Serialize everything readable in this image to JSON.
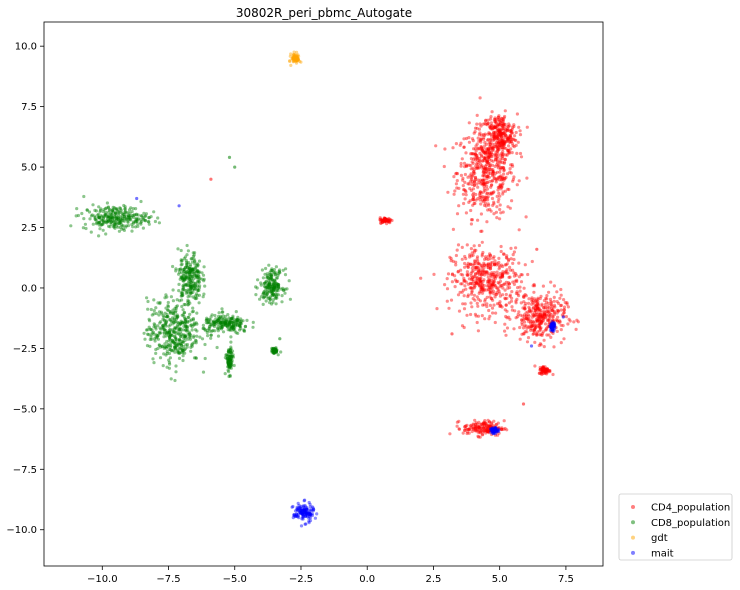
{
  "chart_data": {
    "type": "scatter",
    "title": "30802R_peri_pbmc_Autogate",
    "xlabel": "",
    "ylabel": "",
    "xlim": [
      -12.2,
      8.9
    ],
    "ylim": [
      -11.5,
      11.0
    ],
    "x_ticks": [
      -10.0,
      -7.5,
      -5.0,
      -2.5,
      0.0,
      2.5,
      5.0,
      7.5
    ],
    "x_tick_labels": [
      "−10.0",
      "−7.5",
      "−5.0",
      "−2.5",
      "0.0",
      "2.5",
      "5.0",
      "7.5"
    ],
    "y_ticks": [
      -10.0,
      -7.5,
      -5.0,
      -2.5,
      0.0,
      2.5,
      5.0,
      7.5,
      10.0
    ],
    "y_tick_labels": [
      "−10.0",
      "−7.5",
      "−5.0",
      "−2.5",
      "0.0",
      "2.5",
      "5.0",
      "7.5",
      "10.0"
    ],
    "grid": false,
    "legend_position": "outside-bottom-right",
    "series": [
      {
        "name": "CD4_population",
        "color": "#ff0000",
        "clusters": [
          {
            "cx": 4.5,
            "cy": 4.8,
            "sx": 1.0,
            "sy": 1.7
          },
          {
            "cx": 5.0,
            "cy": 6.3,
            "sx": 0.6,
            "sy": 0.8
          },
          {
            "cx": 4.5,
            "cy": 0.3,
            "sx": 1.2,
            "sy": 1.2
          },
          {
            "cx": 6.5,
            "cy": -1.2,
            "sx": 0.9,
            "sy": 0.9
          },
          {
            "cx": 4.4,
            "cy": -5.8,
            "sx": 0.7,
            "sy": 0.28
          },
          {
            "cx": 0.7,
            "cy": 2.8,
            "sx": 0.2,
            "sy": 0.1
          },
          {
            "cx": 6.7,
            "cy": -3.4,
            "sx": 0.2,
            "sy": 0.15
          }
        ],
        "points": [
          {
            "x": -5.9,
            "y": 4.5
          },
          {
            "x": 5.9,
            "y": -4.8
          },
          {
            "x": 3.2,
            "y": -1.9
          },
          {
            "x": 6.4,
            "y": 1.6
          }
        ]
      },
      {
        "name": "CD8_population",
        "color": "#008000",
        "clusters": [
          {
            "cx": -9.5,
            "cy": 2.9,
            "sx": 1.1,
            "sy": 0.45
          },
          {
            "cx": -7.3,
            "cy": -1.8,
            "sx": 0.9,
            "sy": 1.2
          },
          {
            "cx": -6.7,
            "cy": 0.4,
            "sx": 0.4,
            "sy": 1.0
          },
          {
            "cx": -5.3,
            "cy": -1.5,
            "sx": 0.8,
            "sy": 0.35
          },
          {
            "cx": -3.6,
            "cy": 0.1,
            "sx": 0.4,
            "sy": 0.6
          },
          {
            "cx": -5.2,
            "cy": -3.0,
            "sx": 0.12,
            "sy": 0.5
          },
          {
            "cx": -3.5,
            "cy": -2.6,
            "sx": 0.1,
            "sy": 0.1
          }
        ],
        "points": [
          {
            "x": -5.2,
            "y": 5.4
          },
          {
            "x": -5.0,
            "y": 5.0
          },
          {
            "x": -3.3,
            "y": -2.1
          }
        ]
      },
      {
        "name": "gdt",
        "color": "#ffa500",
        "clusters": [
          {
            "cx": -2.7,
            "cy": 9.5,
            "sx": 0.15,
            "sy": 0.2
          }
        ],
        "points": []
      },
      {
        "name": "mait",
        "color": "#0000ff",
        "clusters": [
          {
            "cx": -2.4,
            "cy": -9.3,
            "sx": 0.35,
            "sy": 0.35
          },
          {
            "cx": 7.0,
            "cy": -1.6,
            "sx": 0.08,
            "sy": 0.15
          },
          {
            "cx": 4.8,
            "cy": -5.9,
            "sx": 0.12,
            "sy": 0.1
          }
        ],
        "points": [
          {
            "x": -8.7,
            "y": 3.7
          },
          {
            "x": -7.1,
            "y": 3.4
          },
          {
            "x": 6.2,
            "y": -2.4
          },
          {
            "x": 7.4,
            "y": -1.2
          }
        ]
      }
    ]
  }
}
